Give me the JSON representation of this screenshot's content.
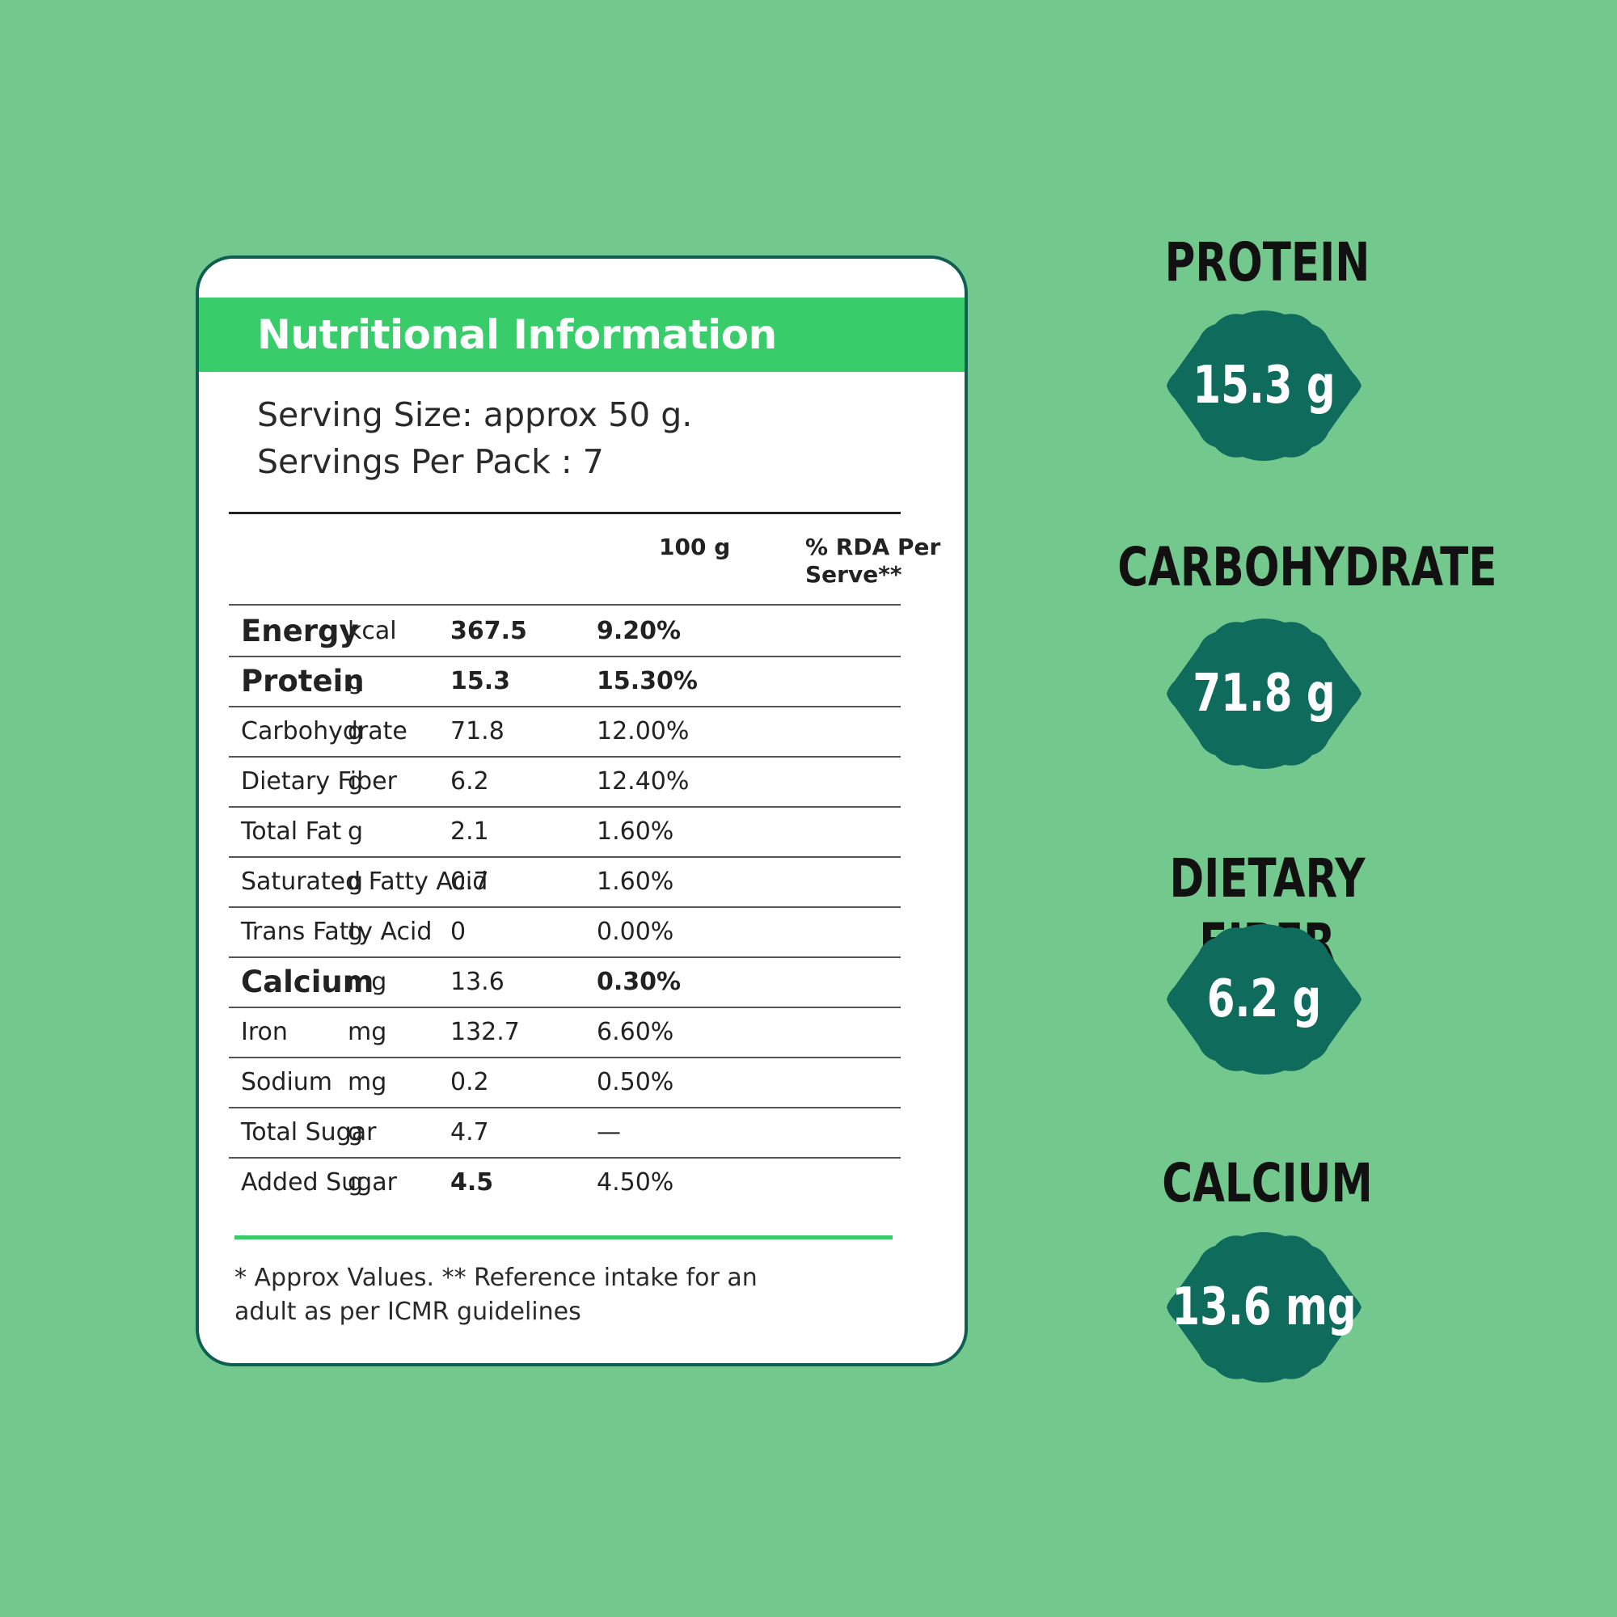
{
  "header": {
    "title": "Nutritional Information",
    "serving_size": "Serving Size: approx 50 g.",
    "servings_per_pack": "Servings Per Pack : 7"
  },
  "table": {
    "columns": {
      "per_100g": "100 g",
      "rda": "% RDA Per Serve**"
    },
    "rows": [
      [
        "Energy",
        "kcal",
        "367.5",
        "9.20%"
      ],
      [
        "Protein",
        "g",
        "15.3",
        "15.30%"
      ],
      [
        "Carbohydrate",
        "g",
        "71.8",
        "12.00%"
      ],
      [
        "Dietary Fiber",
        "g",
        "6.2",
        "12.40%"
      ],
      [
        "Total Fat",
        "g",
        "2.1",
        "1.60%"
      ],
      [
        "Saturated Fatty Acid",
        "g",
        "0.7",
        "1.60%"
      ],
      [
        "Trans Fatty Acid",
        "g",
        "0",
        "0.00%"
      ],
      [
        "Calcium",
        "mg",
        "13.6",
        "0.30%"
      ],
      [
        "Iron",
        "mg",
        "132.7",
        "6.60%"
      ],
      [
        "Sodium",
        "mg",
        "0.2",
        "0.50%"
      ],
      [
        "Total Sugar",
        "g",
        "4.7",
        "—"
      ],
      [
        "Added Sugar",
        "g",
        "4.5",
        "4.50%"
      ]
    ]
  },
  "footnote": "* Approx Values. ** Reference intake for an adult as per ICMR guidelines",
  "highlights": [
    {
      "label": "PROTEIN",
      "value": "15.3 g"
    },
    {
      "label": "CARBOHYDRATE",
      "value": "71.8 g"
    },
    {
      "label": "DIETARY FIBER",
      "value": "6.2 g"
    },
    {
      "label": "CALCIUM",
      "value": "13.6 mg"
    }
  ]
}
